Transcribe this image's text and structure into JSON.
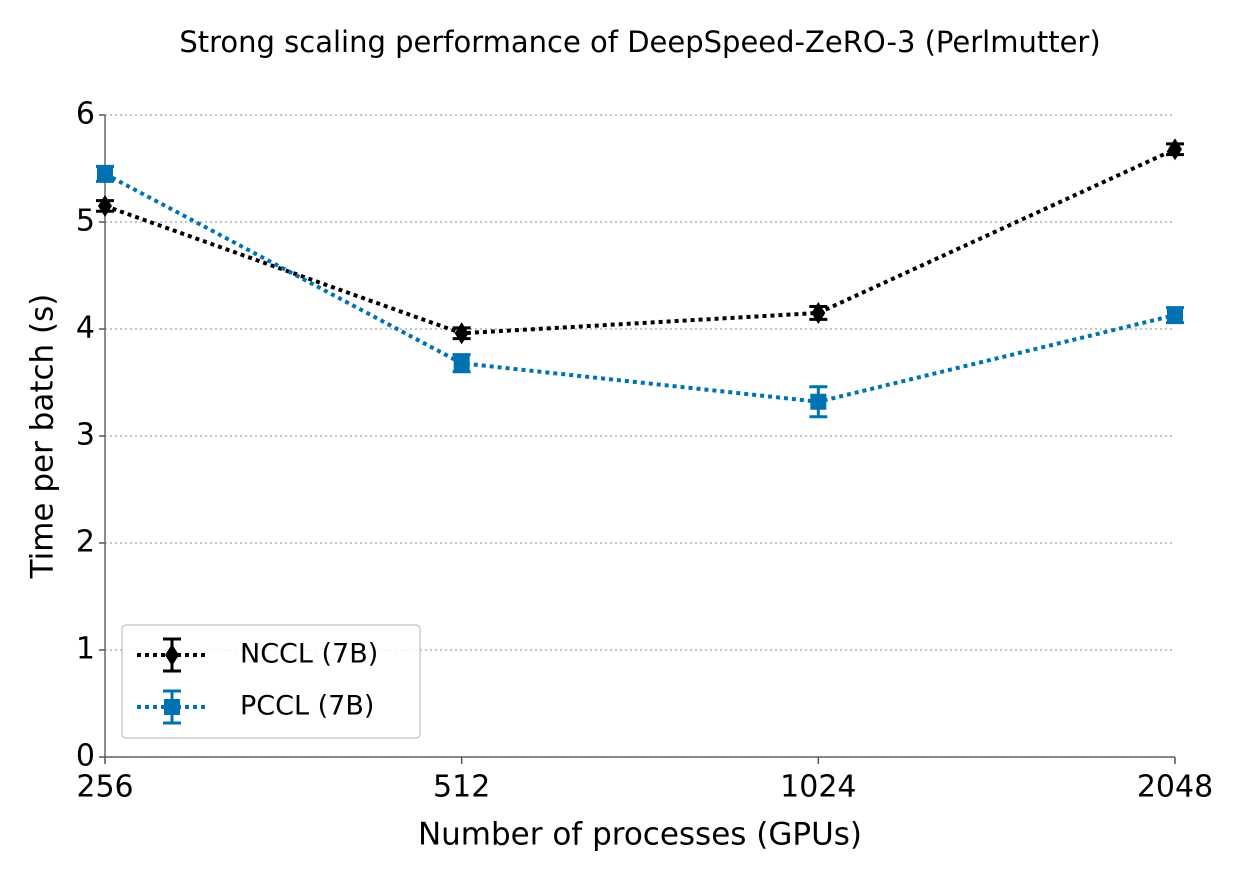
{
  "chart_data": {
    "type": "line",
    "title": "Strong scaling performance of DeepSpeed-ZeRO-3 (Perlmutter)",
    "x_label": "Number of processes (GPUs)",
    "y_label": "Time per batch (s)",
    "x": [
      256,
      512,
      1024,
      2048
    ],
    "xscale": "log",
    "xlim": [
      256,
      2048
    ],
    "xticks": [
      256,
      512,
      1024,
      2048
    ],
    "ylim": [
      0,
      6
    ],
    "yticks": [
      0,
      1,
      2,
      3,
      4,
      5,
      6
    ],
    "grid": true,
    "legend": "lower left",
    "series": [
      {
        "name": "NCCL (7B)",
        "color": "#000000",
        "marker": "diamond",
        "values": [
          5.15,
          3.96,
          4.15,
          5.68
        ],
        "errors": [
          0.05,
          0.05,
          0.06,
          0.05
        ]
      },
      {
        "name": "PCCL (7B)",
        "color": "#0072b2",
        "marker": "square",
        "values": [
          5.45,
          3.68,
          3.32,
          4.13
        ],
        "errors": [
          0.07,
          0.08,
          0.14,
          0.07
        ]
      }
    ]
  }
}
